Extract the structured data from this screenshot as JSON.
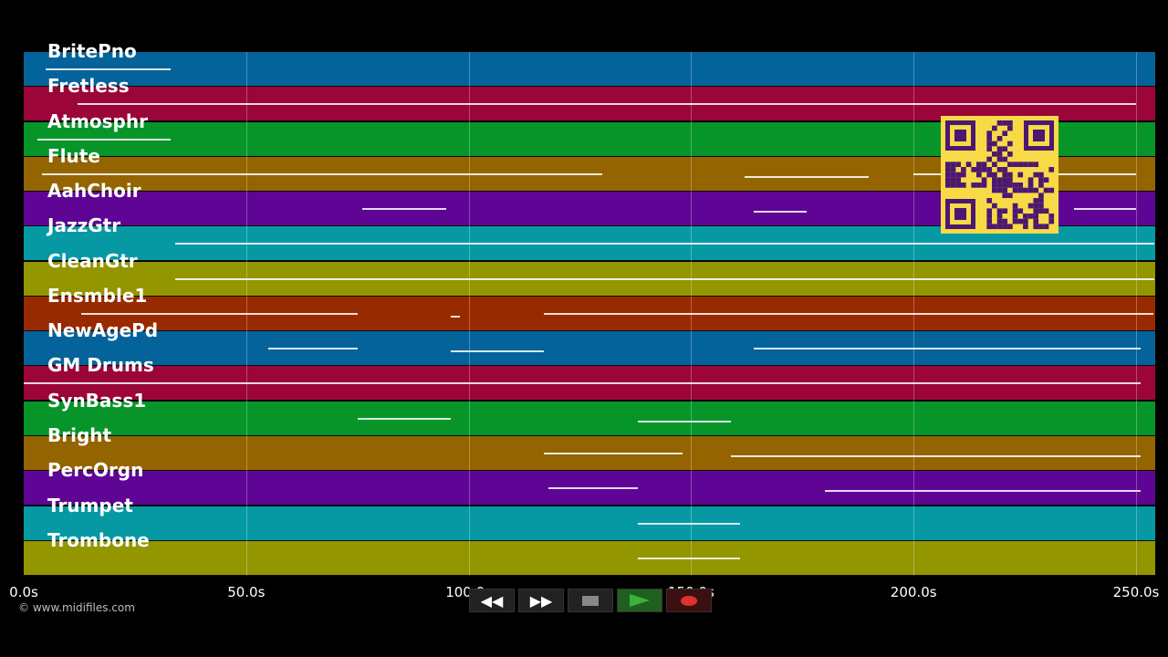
{
  "tracks": [
    {
      "name": "BritePno",
      "color": "#04639a",
      "notes": [
        [
          5,
          33
        ]
      ]
    },
    {
      "name": "Fretless",
      "color": "#9b0537",
      "notes": [
        [
          12,
          250
        ]
      ]
    },
    {
      "name": "Atmosphr",
      "color": "#07952a",
      "notes": [
        [
          3,
          33
        ]
      ]
    },
    {
      "name": "Flute",
      "color": "#946400",
      "notes": [
        [
          4,
          130
        ],
        [
          162,
          190
        ],
        [
          200,
          250
        ]
      ]
    },
    {
      "name": "AahChoir",
      "color": "#5f0595",
      "notes": [
        [
          76,
          95
        ],
        [
          164,
          176
        ],
        [
          236,
          250
        ]
      ]
    },
    {
      "name": "JazzGtr",
      "color": "#0699a4",
      "notes": [
        [
          34,
          254
        ]
      ]
    },
    {
      "name": "CleanGtr",
      "color": "#949600",
      "notes": [
        [
          34,
          254
        ]
      ]
    },
    {
      "name": "Ensmble1",
      "color": "#982a00",
      "notes": [
        [
          13,
          75
        ],
        [
          96,
          98
        ],
        [
          117,
          254
        ]
      ]
    },
    {
      "name": "NewAgePd",
      "color": "#04639a",
      "notes": [
        [
          55,
          75
        ],
        [
          96,
          117
        ],
        [
          164,
          251
        ]
      ]
    },
    {
      "name": "GM Drums",
      "color": "#9b0537",
      "notes": [
        [
          0,
          251
        ]
      ]
    },
    {
      "name": "SynBass1",
      "color": "#07952a",
      "notes": [
        [
          75,
          96
        ],
        [
          138,
          159
        ]
      ]
    },
    {
      "name": "Bright",
      "color": "#946400",
      "notes": [
        [
          117,
          148
        ],
        [
          159,
          251
        ]
      ]
    },
    {
      "name": "PercOrgn",
      "color": "#5f0595",
      "notes": [
        [
          118,
          138
        ],
        [
          180,
          251
        ]
      ]
    },
    {
      "name": "Trumpet",
      "color": "#0699a4",
      "notes": [
        [
          138,
          161
        ]
      ]
    },
    {
      "name": "Trombone",
      "color": "#949600",
      "notes": [
        [
          138,
          161
        ]
      ]
    }
  ],
  "timeline": {
    "max_seconds": 255,
    "ticks": [
      {
        "value": 0,
        "label": "0.0s"
      },
      {
        "value": 50,
        "label": "50.0s"
      },
      {
        "value": 100,
        "label": "100.0s"
      },
      {
        "value": 150,
        "label": "150.0s"
      },
      {
        "value": 200,
        "label": "200.0s"
      },
      {
        "value": 250,
        "label": "250.0s"
      }
    ]
  },
  "copyright": "© www.midifiles.com",
  "transport": {
    "rewind_icon": "rewind-icon",
    "fast_forward_icon": "fast-forward-icon",
    "stop_icon": "stop-icon",
    "play_icon": "play-icon",
    "record_icon": "record-icon",
    "colors": {
      "stop": "#888888",
      "play": "#2fa12f",
      "record": "#e03030"
    }
  },
  "qr_color": "#f8d948"
}
